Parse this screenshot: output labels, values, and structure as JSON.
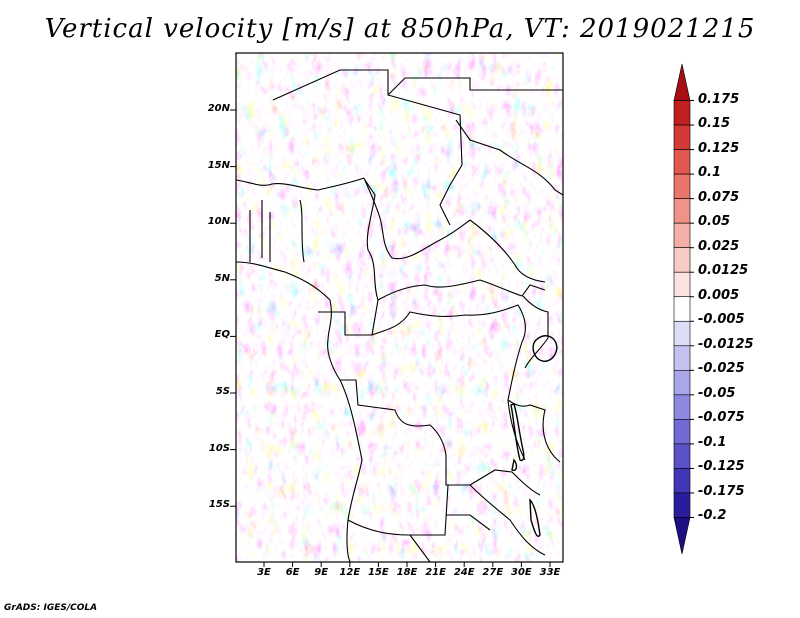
{
  "title": "Vertical velocity [m/s] at 850hPa, VT: 2019021215",
  "map": {
    "lat_labels": [
      "20N",
      "15N",
      "10N",
      "5N",
      "EQ",
      "5S",
      "10S",
      "15S"
    ],
    "lon_labels": [
      "3E",
      "6E",
      "9E",
      "12E",
      "15E",
      "18E",
      "21E",
      "24E",
      "27E",
      "30E",
      "33E"
    ],
    "field": "vertical-velocity-850hPa"
  },
  "colorbar": {
    "labels": [
      "0.175",
      "0.15",
      "0.125",
      "0.1",
      "0.075",
      "0.05",
      "0.025",
      "0.0125",
      "0.005",
      "-0.005",
      "-0.0125",
      "-0.025",
      "-0.05",
      "-0.075",
      "-0.1",
      "-0.125",
      "-0.175",
      "-0.2"
    ],
    "colors": [
      "#a80d14",
      "#c02020",
      "#d23a35",
      "#e0584e",
      "#e97469",
      "#ef9288",
      "#f4b0a8",
      "#f8ccc6",
      "#fbe4e0",
      "#ffffff",
      "#dcdcf6",
      "#c4c2f0",
      "#a9a6e9",
      "#8d88e0",
      "#726bd6",
      "#5a52c9",
      "#4037b6",
      "#2a1d9c",
      "#1c0e85"
    ]
  },
  "credit": "GrADS: IGES/COLA"
}
